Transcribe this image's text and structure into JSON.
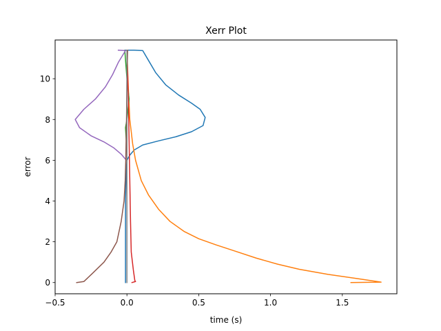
{
  "chart_data": {
    "type": "line",
    "title": "Xerr Plot",
    "xlabel": "time (s)",
    "ylabel": "error",
    "xlim": [
      -0.5,
      1.88
    ],
    "ylim": [
      -0.55,
      11.9
    ],
    "grid": false,
    "xticks": [
      -0.5,
      0.0,
      0.5,
      1.0,
      1.5
    ],
    "xtick_labels": [
      "−0.5",
      "0.0",
      "0.5",
      "1.0",
      "1.5"
    ],
    "yticks": [
      0,
      2,
      4,
      6,
      8,
      10
    ],
    "ytick_labels": [
      "0",
      "2",
      "4",
      "6",
      "8",
      "10"
    ],
    "series": [
      {
        "color": "#1f77b4",
        "points": [
          [
            -0.01,
            11.4
          ],
          [
            0.05,
            11.4
          ],
          [
            0.11,
            11.38
          ],
          [
            0.15,
            10.9
          ],
          [
            0.2,
            10.3
          ],
          [
            0.27,
            9.7
          ],
          [
            0.36,
            9.2
          ],
          [
            0.45,
            8.8
          ],
          [
            0.51,
            8.5
          ],
          [
            0.545,
            8.1
          ],
          [
            0.53,
            7.7
          ],
          [
            0.45,
            7.4
          ],
          [
            0.34,
            7.15
          ],
          [
            0.22,
            6.95
          ],
          [
            0.11,
            6.75
          ],
          [
            0.05,
            6.5
          ],
          [
            0.02,
            6.25
          ],
          [
            0.0,
            6.0
          ],
          [
            -0.005,
            5.5
          ],
          [
            -0.01,
            4.0
          ],
          [
            -0.01,
            2.0
          ],
          [
            -0.01,
            0.0
          ]
        ]
      },
      {
        "color": "#ff7f0e",
        "points": [
          [
            0.0,
            11.4
          ],
          [
            0.01,
            9.5
          ],
          [
            0.02,
            8.0
          ],
          [
            0.04,
            6.8
          ],
          [
            0.06,
            6.0
          ],
          [
            0.1,
            5.0
          ],
          [
            0.15,
            4.3
          ],
          [
            0.22,
            3.6
          ],
          [
            0.3,
            3.0
          ],
          [
            0.4,
            2.5
          ],
          [
            0.5,
            2.15
          ],
          [
            0.62,
            1.85
          ],
          [
            0.75,
            1.55
          ],
          [
            0.9,
            1.2
          ],
          [
            1.05,
            0.9
          ],
          [
            1.2,
            0.65
          ],
          [
            1.4,
            0.4
          ],
          [
            1.6,
            0.2
          ],
          [
            1.77,
            0.02
          ],
          [
            1.56,
            0.0
          ]
        ]
      },
      {
        "color": "#2ca02c",
        "points": [
          [
            -0.015,
            11.4
          ],
          [
            0.0,
            10.0
          ],
          [
            0.015,
            9.0
          ],
          [
            0.0,
            8.0
          ],
          [
            -0.01,
            7.6
          ],
          [
            -0.005,
            7.0
          ]
        ]
      },
      {
        "color": "#d62728",
        "points": [
          [
            0.0,
            11.4
          ],
          [
            0.01,
            9.0
          ],
          [
            0.015,
            7.0
          ],
          [
            0.02,
            5.0
          ],
          [
            0.025,
            3.0
          ],
          [
            0.03,
            1.5
          ],
          [
            0.045,
            0.6
          ],
          [
            0.055,
            0.1
          ],
          [
            0.06,
            0.05
          ],
          [
            0.035,
            0.0
          ]
        ]
      },
      {
        "color": "#9467bd",
        "points": [
          [
            -0.06,
            11.4
          ],
          [
            -0.01,
            11.38
          ],
          [
            -0.06,
            10.8
          ],
          [
            -0.1,
            10.2
          ],
          [
            -0.15,
            9.6
          ],
          [
            -0.22,
            9.0
          ],
          [
            -0.3,
            8.5
          ],
          [
            -0.36,
            8.0
          ],
          [
            -0.33,
            7.6
          ],
          [
            -0.25,
            7.2
          ],
          [
            -0.16,
            6.9
          ],
          [
            -0.09,
            6.6
          ],
          [
            -0.04,
            6.3
          ],
          [
            -0.01,
            6.05
          ],
          [
            0.0,
            6.0
          ]
        ]
      },
      {
        "color": "#8c564b",
        "points": [
          [
            0.005,
            11.4
          ],
          [
            0.0,
            10.0
          ],
          [
            -0.003,
            8.0
          ],
          [
            -0.008,
            6.0
          ],
          [
            -0.012,
            5.0
          ],
          [
            -0.02,
            4.0
          ],
          [
            -0.04,
            3.0
          ],
          [
            -0.07,
            2.0
          ],
          [
            -0.11,
            1.5
          ],
          [
            -0.16,
            1.0
          ],
          [
            -0.24,
            0.45
          ],
          [
            -0.3,
            0.05
          ],
          [
            -0.35,
            0.0
          ]
        ]
      },
      {
        "color": "#7f7f7f",
        "points": [
          [
            0.0,
            11.4
          ],
          [
            0.0,
            0.0
          ]
        ]
      }
    ]
  }
}
